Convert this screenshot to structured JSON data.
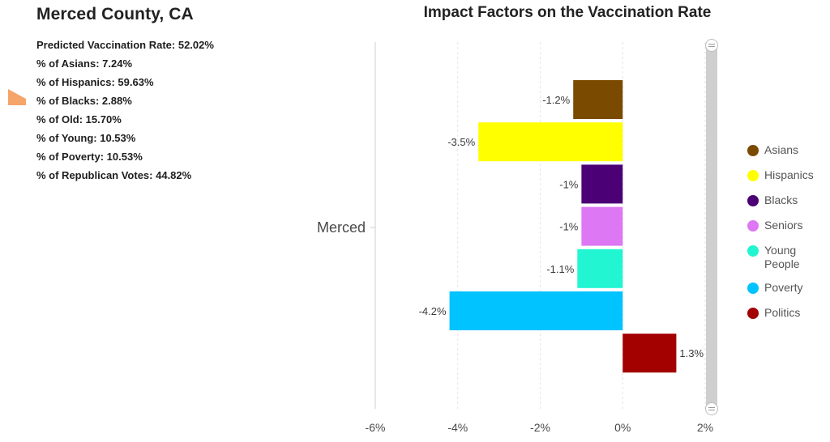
{
  "panel": {
    "title": "Merced County, CA",
    "stats": [
      "Predicted Vaccination Rate: 52.02%",
      "% of Asians: 7.24%",
      "% of Hispanics: 59.63%",
      "% of Blacks: 2.88%",
      "% of Old: 15.70%",
      "% of Young: 10.53%",
      "% of Poverty: 10.53%",
      "% of Republican Votes: 44.82%"
    ],
    "marker_color": "#f5a46a"
  },
  "chart_data": {
    "type": "bar",
    "orientation": "horizontal",
    "title": "Impact Factors on the Vaccination Rate",
    "category": "Merced",
    "xlim": [
      -6,
      2
    ],
    "x_ticks": [
      -6,
      -4,
      -2,
      0,
      2
    ],
    "x_tick_labels": [
      "-6%",
      "-4%",
      "-2%",
      "0%",
      "2%"
    ],
    "grid": true,
    "legend_position": "right",
    "series": [
      {
        "name": "Asians",
        "value": -1.2,
        "label": "-1.2%",
        "color": "#7a4a00"
      },
      {
        "name": "Hispanics",
        "value": -3.5,
        "label": "-3.5%",
        "color": "#ffff00"
      },
      {
        "name": "Blacks",
        "value": -1.0,
        "label": "-1%",
        "color": "#4b0075"
      },
      {
        "name": "Seniors",
        "value": -1.0,
        "label": "-1%",
        "color": "#dd77f4"
      },
      {
        "name": "Young People",
        "value": -1.1,
        "label": "-1.1%",
        "color": "#22f5d2"
      },
      {
        "name": "Poverty",
        "value": -4.2,
        "label": "-4.2%",
        "color": "#00c3ff"
      },
      {
        "name": "Politics",
        "value": 1.3,
        "label": "1.3%",
        "color": "#a30000"
      }
    ]
  }
}
